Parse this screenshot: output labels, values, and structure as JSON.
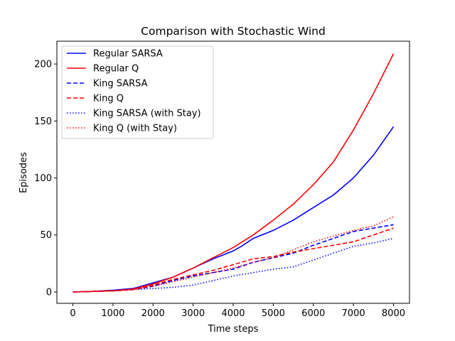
{
  "chart_data": {
    "type": "line",
    "title": "Comparison with Stochastic Wind",
    "xlabel": "Time steps",
    "ylabel": "Episodes",
    "xlim": [
      -400,
      8400
    ],
    "ylim": [
      -10,
      220
    ],
    "xticks": [
      0,
      1000,
      2000,
      3000,
      4000,
      5000,
      6000,
      7000,
      8000
    ],
    "yticks": [
      0,
      50,
      100,
      150,
      200
    ],
    "grid": false,
    "legend_placement": "top-left",
    "series": [
      {
        "name": "Regular SARSA",
        "color": "#0000ff",
        "style": "solid",
        "x": [
          0,
          500,
          1000,
          1500,
          2000,
          2500,
          3000,
          3500,
          4000,
          4200,
          4500,
          5000,
          5500,
          6000,
          6500,
          7000,
          7500,
          8000
        ],
        "y": [
          0,
          0.5,
          1.5,
          3,
          8,
          13,
          21,
          29,
          36,
          40,
          47,
          54,
          63,
          74,
          85,
          100,
          120,
          145
        ]
      },
      {
        "name": "Regular Q",
        "color": "#ff0000",
        "style": "solid",
        "x": [
          0,
          500,
          1000,
          1500,
          2000,
          2500,
          3000,
          3500,
          4000,
          4500,
          5000,
          5500,
          6000,
          6500,
          7000,
          7500,
          8000
        ],
        "y": [
          0,
          0.5,
          1,
          2.5,
          7,
          13,
          21,
          30,
          39,
          50,
          63,
          77,
          94,
          114,
          142,
          174,
          209
        ]
      },
      {
        "name": "King SARSA",
        "color": "#0000ff",
        "style": "dashed",
        "x": [
          0,
          500,
          1000,
          1500,
          2000,
          2500,
          3000,
          3500,
          4000,
          4500,
          5000,
          5500,
          6000,
          6500,
          7000,
          7500,
          8000
        ],
        "y": [
          0,
          0.5,
          1,
          2,
          5,
          10,
          14,
          17,
          20,
          26,
          30,
          34,
          41,
          47,
          53,
          56,
          59
        ]
      },
      {
        "name": "King Q",
        "color": "#ff0000",
        "style": "dashed",
        "x": [
          0,
          500,
          1000,
          1500,
          2000,
          2500,
          3000,
          3500,
          4000,
          4500,
          5000,
          5500,
          6000,
          6500,
          7000,
          7500,
          8000
        ],
        "y": [
          0,
          0.5,
          1,
          2,
          6,
          11,
          15,
          19,
          24,
          29,
          31,
          35,
          38,
          41,
          44,
          50,
          56
        ]
      },
      {
        "name": "King SARSA (with Stay)",
        "color": "#0000ff",
        "style": "dotted",
        "x": [
          0,
          500,
          1000,
          1500,
          2000,
          2500,
          3000,
          3500,
          4000,
          4500,
          5000,
          5500,
          6000,
          6500,
          7000,
          7500,
          8000
        ],
        "y": [
          0,
          0.5,
          1,
          2,
          3,
          4,
          6,
          10,
          14,
          17,
          20,
          22,
          28,
          34,
          40,
          43,
          47
        ]
      },
      {
        "name": "King Q (with Stay)",
        "color": "#ff0000",
        "style": "dotted",
        "x": [
          0,
          500,
          1000,
          1500,
          2000,
          2500,
          3000,
          3500,
          4000,
          4500,
          5000,
          5500,
          6000,
          6500,
          7000,
          7500,
          8000
        ],
        "y": [
          0,
          0.5,
          1,
          2,
          5,
          9,
          13,
          17,
          21,
          26,
          30,
          37,
          44,
          49,
          54,
          58,
          66
        ]
      }
    ]
  }
}
